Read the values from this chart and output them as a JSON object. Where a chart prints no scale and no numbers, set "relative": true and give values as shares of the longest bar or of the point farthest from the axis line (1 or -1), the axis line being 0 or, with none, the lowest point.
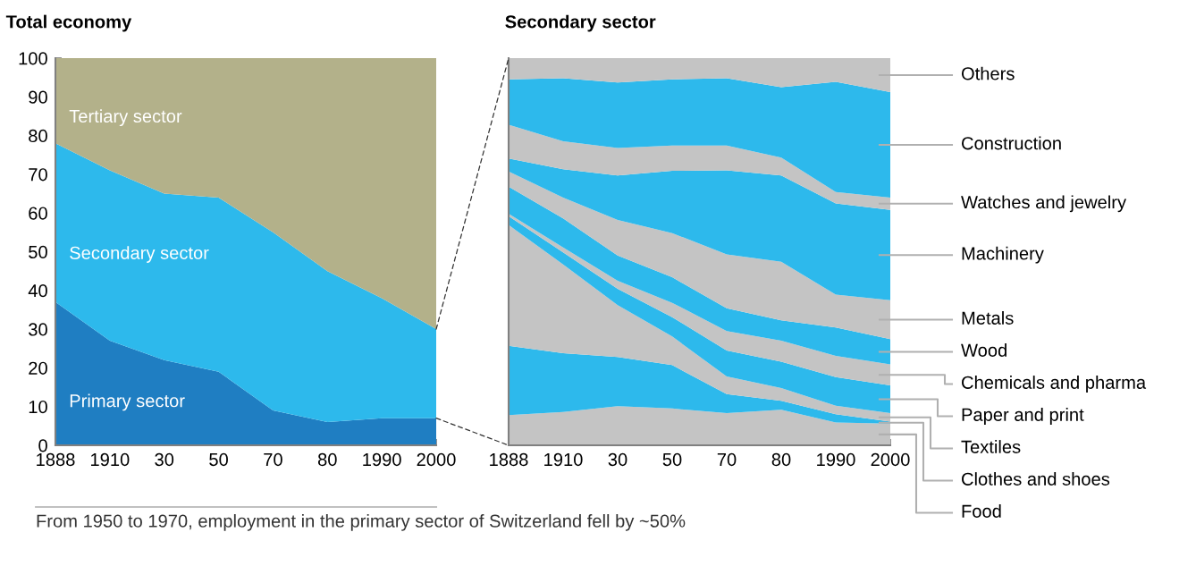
{
  "chart_data": [
    {
      "type": "area",
      "stacked": true,
      "title": "Total economy",
      "categories": [
        "1888",
        "1910",
        "30",
        "50",
        "70",
        "80",
        "1990",
        "2000"
      ],
      "ylim": [
        0,
        100
      ],
      "yticks": [
        0,
        10,
        20,
        30,
        40,
        50,
        60,
        70,
        80,
        90,
        100
      ],
      "grid": false,
      "legend": false,
      "annotations": [
        "From 1950 to 1970, employment in the primary sector of Switzerland fell by ~50%"
      ],
      "series": [
        {
          "name": "Primary sector",
          "color": "#1f7ec2",
          "values": [
            37,
            27,
            22,
            19,
            9,
            6,
            7,
            7
          ]
        },
        {
          "name": "Secondary sector",
          "color": "#2db9ec",
          "values": [
            41,
            44,
            43,
            45,
            46,
            39,
            31,
            23
          ]
        },
        {
          "name": "Tertiary sector",
          "color": "#b3b18a",
          "values": [
            22,
            29,
            35,
            36,
            45,
            55,
            62,
            70
          ]
        }
      ]
    },
    {
      "type": "area",
      "stacked": true,
      "relative": true,
      "title": "Secondary sector",
      "categories": [
        "1888",
        "1910",
        "30",
        "50",
        "70",
        "80",
        "1990",
        "2000"
      ],
      "grid": false,
      "legend": false,
      "tick_labels": "x",
      "series": [
        {
          "name": "Food",
          "color": "#c4c4c4",
          "values": [
            0.078,
            0.086,
            0.101,
            0.095,
            0.083,
            0.092,
            0.059,
            0.056
          ]
        },
        {
          "name": "Clothes and shoes",
          "color": "#2db9ec",
          "values": [
            0.179,
            0.152,
            0.127,
            0.112,
            0.049,
            0.023,
            0.021,
            0.005
          ]
        },
        {
          "name": "Textiles",
          "color": "#c4c4c4",
          "values": [
            0.312,
            0.229,
            0.134,
            0.074,
            0.046,
            0.033,
            0.022,
            0.022
          ]
        },
        {
          "name": "Paper and print",
          "color": "#2db9ec",
          "values": [
            0.023,
            0.031,
            0.042,
            0.05,
            0.067,
            0.068,
            0.074,
            0.072
          ]
        },
        {
          "name": "Chemicals and pharma",
          "color": "#c4c4c4",
          "values": [
            0.006,
            0.013,
            0.021,
            0.037,
            0.05,
            0.054,
            0.055,
            0.054
          ]
        },
        {
          "name": "Wood",
          "color": "#2db9ec",
          "values": [
            0.07,
            0.075,
            0.065,
            0.066,
            0.059,
            0.053,
            0.073,
            0.065
          ]
        },
        {
          "name": "Metals",
          "color": "#c4c4c4",
          "values": [
            0.039,
            0.054,
            0.092,
            0.114,
            0.139,
            0.151,
            0.085,
            0.101
          ]
        },
        {
          "name": "Machinery",
          "color": "#2db9ec",
          "values": [
            0.034,
            0.073,
            0.115,
            0.161,
            0.217,
            0.223,
            0.236,
            0.233
          ]
        },
        {
          "name": "Watches and jewelry",
          "color": "#c4c4c4",
          "values": [
            0.087,
            0.072,
            0.071,
            0.065,
            0.064,
            0.046,
            0.029,
            0.032
          ]
        },
        {
          "name": "Construction",
          "color": "#2db9ec",
          "values": [
            0.117,
            0.163,
            0.169,
            0.171,
            0.174,
            0.182,
            0.285,
            0.272
          ]
        },
        {
          "name": "Others",
          "color": "#c4c4c4",
          "values": [
            0.055,
            0.052,
            0.063,
            0.055,
            0.052,
            0.075,
            0.061,
            0.088
          ]
        }
      ]
    }
  ]
}
